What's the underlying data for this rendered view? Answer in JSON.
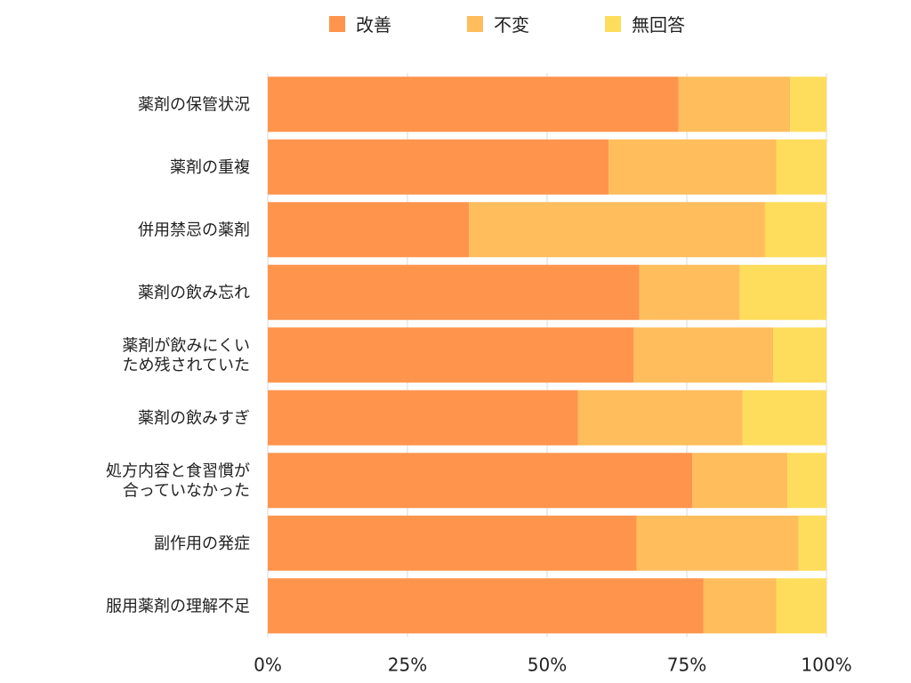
{
  "chart_data": {
    "type": "bar",
    "orientation": "horizontal",
    "stacked": true,
    "normalized_percent": true,
    "categories": [
      "薬剤の保管状況",
      "薬剤の重複",
      "併用禁忌の薬剤",
      "薬剤の飲み忘れ",
      "薬剤が飲みにくい\nため残されていた",
      "薬剤の飲みすぎ",
      "処方内容と食習慣が\n合っていなかった",
      "副作用の発症",
      "服用薬剤の理解不足"
    ],
    "series": [
      {
        "name": "改善",
        "color": "#FF944D",
        "values": [
          73.5,
          61,
          36,
          66.5,
          65.5,
          55.5,
          76,
          66,
          78
        ]
      },
      {
        "name": "不変",
        "color": "#FFBD5C",
        "values": [
          20,
          30,
          53,
          18,
          25,
          29.5,
          17,
          29,
          13
        ]
      },
      {
        "name": "無回答",
        "color": "#FFDD5C",
        "values": [
          6.5,
          9,
          11,
          15.5,
          9.5,
          15,
          7,
          5,
          9
        ]
      }
    ],
    "xlim": [
      0,
      100
    ],
    "xticks": [
      "0%",
      "25%",
      "50%",
      "75%",
      "100%"
    ],
    "grid": true,
    "legend_position": "top-center",
    "title": "",
    "xlabel": "",
    "ylabel": ""
  }
}
